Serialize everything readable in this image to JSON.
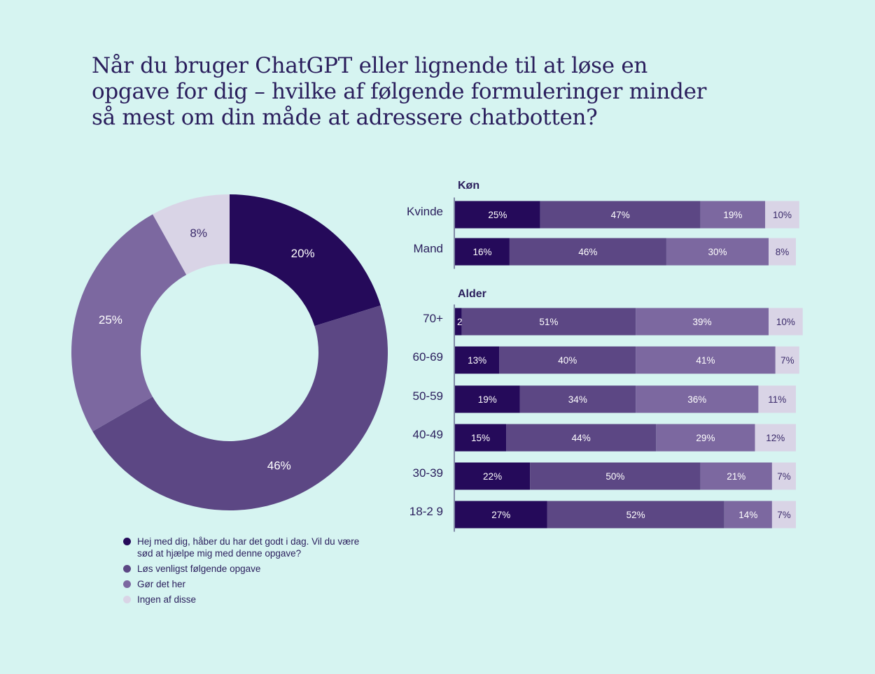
{
  "title": "Når du bruger ChatGPT eller lignende til at løse en opgave for dig – hvilke af følgende formuleringer minder så mest om din måde at adressere chatbotten?",
  "colors": [
    "#250a5a",
    "#5c4784",
    "#7c68a0",
    "#d9d4e6"
  ],
  "legend": [
    {
      "label": "Hej med dig, håber du har det godt i dag. Vil du være sød at hjælpe mig med denne opgave?"
    },
    {
      "label": "Løs venligst følgende opgave"
    },
    {
      "label": "Gør det her"
    },
    {
      "label": "Ingen af disse"
    }
  ],
  "chart_data": [
    {
      "type": "pie",
      "variant": "donut",
      "categories": [
        "Hej med dig, håber du har det godt i dag. Vil du være sød at hjælpe mig med denne opgave?",
        "Løs venligst følgende opgave",
        "Gør det her",
        "Ingen af disse"
      ],
      "values": [
        20,
        46,
        25,
        8
      ],
      "labels": [
        "20%",
        "46%",
        "25%",
        "8%"
      ]
    },
    {
      "type": "bar",
      "orientation": "horizontal",
      "stacked": true,
      "groups": [
        {
          "name": "Køn",
          "rows": [
            {
              "label": "Kvinde",
              "values": [
                25,
                47,
                19,
                10
              ]
            },
            {
              "label": "Mand",
              "values": [
                16,
                46,
                30,
                8
              ]
            }
          ]
        },
        {
          "name": "Alder",
          "rows": [
            {
              "label": "70+",
              "values": [
                2,
                51,
                39,
                10
              ]
            },
            {
              "label": "60-69",
              "values": [
                13,
                40,
                41,
                7
              ]
            },
            {
              "label": "50-59",
              "values": [
                19,
                34,
                36,
                11
              ]
            },
            {
              "label": "40-49",
              "values": [
                15,
                44,
                29,
                12
              ]
            },
            {
              "label": "30-39",
              "values": [
                22,
                50,
                21,
                7
              ]
            },
            {
              "label": "18-2 9",
              "values": [
                27,
                52,
                14,
                7
              ]
            }
          ]
        }
      ]
    }
  ]
}
